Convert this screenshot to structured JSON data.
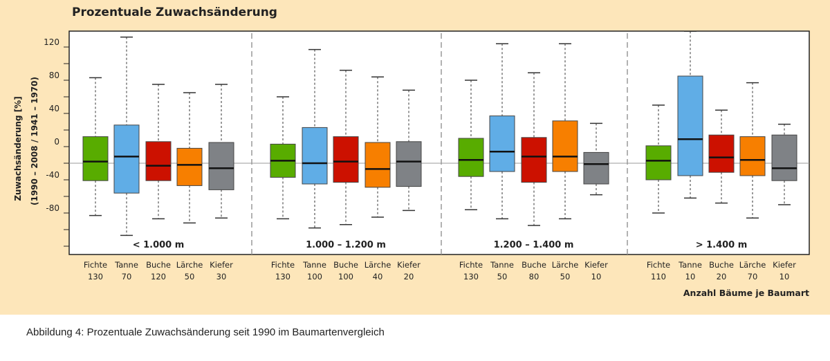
{
  "caption": "Abbildung 4: Prozentuale Zuwachsänderung seit 1990 im Baumartenvergleich",
  "chart_data": {
    "type": "boxplot",
    "title": "Prozentuale Zuwachsänderung",
    "ylabel": "Zuwachsänderung [%]",
    "ylabel2": "(1990 – 2008 / 1941 – 1970)",
    "xlabel": "Anzahl Bäume je Baumart",
    "ylim": [
      -130,
      139
    ],
    "yticks": [
      120,
      80,
      40,
      0,
      -40,
      -80
    ],
    "reference_line": -20,
    "colors": {
      "Fichte": "#58ac00",
      "Tanne": "#60ade6",
      "Buche": "#cc1100",
      "Lärche": "#f77f00",
      "Kiefer": "#7f8286"
    },
    "groups": [
      {
        "label": "< 1.000 m",
        "species": [
          {
            "name": "Fichte",
            "n": "130",
            "min": -83,
            "q1": -41,
            "median": -18,
            "q3": 12,
            "max": 83
          },
          {
            "name": "Tanne",
            "n": "70",
            "min": -107,
            "q1": -56,
            "median": -12,
            "q3": 26,
            "max": 132
          },
          {
            "name": "Buche",
            "n": "120",
            "min": -87,
            "q1": -41,
            "median": -23,
            "q3": 6,
            "max": 75
          },
          {
            "name": "Lärche",
            "n": "50",
            "min": -92,
            "q1": -47,
            "median": -22,
            "q3": -2,
            "max": 65
          },
          {
            "name": "Kiefer",
            "n": "30",
            "min": -86,
            "q1": -52,
            "median": -26,
            "q3": 5,
            "max": 75
          }
        ]
      },
      {
        "label": "1.000 – 1.200 m",
        "species": [
          {
            "name": "Fichte",
            "n": "130",
            "min": -87,
            "q1": -37,
            "median": -17,
            "q3": 3,
            "max": 60
          },
          {
            "name": "Tanne",
            "n": "100",
            "min": -98,
            "q1": -45,
            "median": -20,
            "q3": 23,
            "max": 117
          },
          {
            "name": "Buche",
            "n": "100",
            "min": -94,
            "q1": -43,
            "median": -18,
            "q3": 12,
            "max": 92
          },
          {
            "name": "Lärche",
            "n": "40",
            "min": -85,
            "q1": -49,
            "median": -27,
            "q3": 5,
            "max": 84
          },
          {
            "name": "Kiefer",
            "n": "20",
            "min": -77,
            "q1": -48,
            "median": -18,
            "q3": 6,
            "max": 68
          }
        ]
      },
      {
        "label": "1.200 – 1.400 m",
        "species": [
          {
            "name": "Fichte",
            "n": "130",
            "min": -76,
            "q1": -36,
            "median": -16,
            "q3": 10,
            "max": 80
          },
          {
            "name": "Tanne",
            "n": "50",
            "min": -87,
            "q1": -30,
            "median": -6,
            "q3": 37,
            "max": 124
          },
          {
            "name": "Buche",
            "n": "80",
            "min": -95,
            "q1": -43,
            "median": -12,
            "q3": 11,
            "max": 89
          },
          {
            "name": "Lärche",
            "n": "50",
            "min": -87,
            "q1": -30,
            "median": -12,
            "q3": 31,
            "max": 124
          },
          {
            "name": "Kiefer",
            "n": "10",
            "min": -58,
            "q1": -45,
            "median": -21,
            "q3": -7,
            "max": 28
          }
        ]
      },
      {
        "label": "> 1.400 m",
        "species": [
          {
            "name": "Fichte",
            "n": "110",
            "min": -80,
            "q1": -40,
            "median": -17,
            "q3": 1,
            "max": 50
          },
          {
            "name": "Tanne",
            "n": "10",
            "min": -62,
            "q1": -35,
            "median": 9,
            "q3": 85,
            "max": 139
          },
          {
            "name": "Buche",
            "n": "20",
            "min": -68,
            "q1": -31,
            "median": -13,
            "q3": 14,
            "max": 44
          },
          {
            "name": "Lärche",
            "n": "70",
            "min": -86,
            "q1": -35,
            "median": -16,
            "q3": 12,
            "max": 77
          },
          {
            "name": "Kiefer",
            "n": "10",
            "min": -70,
            "q1": -41,
            "median": -26,
            "q3": 14,
            "max": 27
          }
        ]
      }
    ]
  }
}
